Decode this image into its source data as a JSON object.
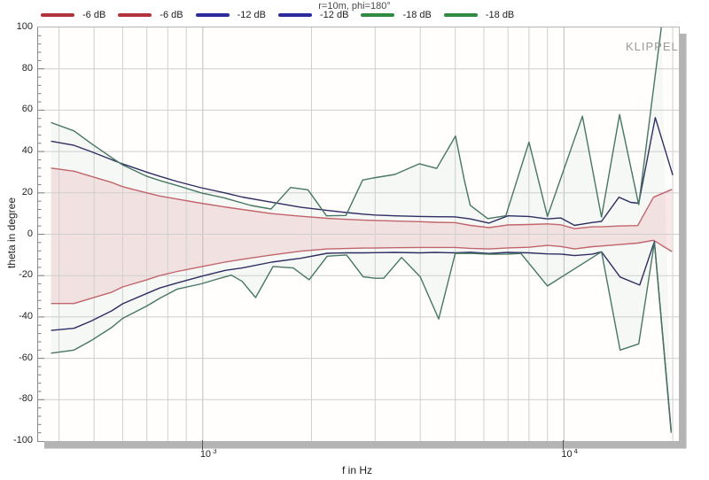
{
  "title": "r=10m, phi=180°",
  "watermark": "KLIPPEL",
  "legend": [
    {
      "label": "-6 dB",
      "color": "#b2333b"
    },
    {
      "label": "-6 dB",
      "color": "#b2333b"
    },
    {
      "label": "-12 dB",
      "color": "#2b2b9e"
    },
    {
      "label": "-12 dB",
      "color": "#2b2b9e"
    },
    {
      "label": "-18 dB",
      "color": "#2f8b40"
    },
    {
      "label": "-18 dB",
      "color": "#2f8b40"
    }
  ],
  "chart_data": {
    "type": "line",
    "title": "r=10m, phi=180°",
    "xlabel": "f in Hz",
    "ylabel": "theta in degree",
    "xscale": "log",
    "xlim": [
      350,
      20800
    ],
    "ylim": [
      -100,
      100
    ],
    "grid": true,
    "yticks": [
      100,
      80,
      60,
      40,
      20,
      0,
      -20,
      -40,
      -60,
      -80,
      -100
    ],
    "xticks": [
      {
        "label_base": "10",
        "label_exp": "3",
        "value": 1000
      },
      {
        "label_base": "10",
        "label_exp": "4",
        "value": 10000
      }
    ],
    "grid_freqs": [
      400,
      500,
      600,
      700,
      800,
      900,
      1000,
      2000,
      3000,
      4000,
      5000,
      6000,
      7000,
      8000,
      9000,
      10000,
      20000
    ],
    "colors": {
      "red_curve": "#c2646c",
      "blue_curve": "#2e2e63",
      "green_curve": "#477762",
      "grid": "#cfcfcf",
      "grid_major": "#bdbdbd",
      "band_red_fill": "rgba(225,130,140,0.18)",
      "band_green_fill": "rgba(110,170,130,0.07)"
    },
    "series": [
      {
        "name": "-6 dB upper",
        "color": "#c2646c",
        "points": [
          [
            380,
            32
          ],
          [
            440,
            30.5
          ],
          [
            490,
            28
          ],
          [
            560,
            25
          ],
          [
            600,
            23
          ],
          [
            700,
            20
          ],
          [
            760,
            18.5
          ],
          [
            850,
            17
          ],
          [
            990,
            15
          ],
          [
            1150,
            13.2
          ],
          [
            1285,
            12
          ],
          [
            1550,
            10
          ],
          [
            1870,
            8.7
          ],
          [
            2210,
            7.7
          ],
          [
            2500,
            7.2
          ],
          [
            2800,
            6.8
          ],
          [
            3000,
            6.7
          ],
          [
            3400,
            6.4
          ],
          [
            4000,
            6.1
          ],
          [
            4400,
            5.8
          ],
          [
            5000,
            5.6
          ],
          [
            5500,
            4.3
          ],
          [
            6200,
            3.2
          ],
          [
            7000,
            4.5
          ],
          [
            8000,
            4.7
          ],
          [
            9000,
            5
          ],
          [
            9800,
            4.6
          ],
          [
            10700,
            2.7
          ],
          [
            12000,
            3.6
          ],
          [
            12700,
            3.6
          ],
          [
            14200,
            4
          ],
          [
            16000,
            4.2
          ],
          [
            17700,
            17.9
          ],
          [
            19900,
            21.7
          ]
        ]
      },
      {
        "name": "-6 dB lower",
        "color": "#c2646c",
        "points": [
          [
            380,
            -33.5
          ],
          [
            440,
            -33.5
          ],
          [
            490,
            -31
          ],
          [
            560,
            -28
          ],
          [
            600,
            -25.5
          ],
          [
            700,
            -22
          ],
          [
            760,
            -20
          ],
          [
            850,
            -18
          ],
          [
            990,
            -15.7
          ],
          [
            1150,
            -13.5
          ],
          [
            1285,
            -12.1
          ],
          [
            1550,
            -10
          ],
          [
            1870,
            -8.2
          ],
          [
            2210,
            -7.1
          ],
          [
            2500,
            -6.9
          ],
          [
            2800,
            -6.7
          ],
          [
            3000,
            -6.7
          ],
          [
            3400,
            -6.5
          ],
          [
            4000,
            -6.4
          ],
          [
            4400,
            -6.4
          ],
          [
            5000,
            -6.4
          ],
          [
            5500,
            -6.8
          ],
          [
            6200,
            -7.1
          ],
          [
            7000,
            -6.6
          ],
          [
            8000,
            -6.3
          ],
          [
            9000,
            -5.4
          ],
          [
            9800,
            -5.9
          ],
          [
            10700,
            -7.1
          ],
          [
            12000,
            -6
          ],
          [
            12700,
            -5.7
          ],
          [
            14200,
            -5
          ],
          [
            16000,
            -4.3
          ],
          [
            17700,
            -2.9
          ],
          [
            19900,
            -8.4
          ]
        ]
      },
      {
        "name": "-12 dB upper",
        "color": "#2e2e63",
        "points": [
          [
            380,
            45
          ],
          [
            440,
            43
          ],
          [
            490,
            40
          ],
          [
            560,
            36
          ],
          [
            600,
            34
          ],
          [
            700,
            30
          ],
          [
            760,
            28
          ],
          [
            850,
            25.5
          ],
          [
            990,
            22.5
          ],
          [
            1150,
            20
          ],
          [
            1285,
            18
          ],
          [
            1550,
            15.5
          ],
          [
            1870,
            13
          ],
          [
            2210,
            11.5
          ],
          [
            2500,
            10.5
          ],
          [
            2800,
            9.7
          ],
          [
            3000,
            9.3
          ],
          [
            3400,
            8.9
          ],
          [
            4000,
            8.6
          ],
          [
            4400,
            8.5
          ],
          [
            5000,
            8.4
          ],
          [
            5500,
            7.4
          ],
          [
            6200,
            5.4
          ],
          [
            7000,
            8.9
          ],
          [
            8000,
            8.6
          ],
          [
            9000,
            7.4
          ],
          [
            9800,
            7.9
          ],
          [
            10700,
            4.3
          ],
          [
            12000,
            5.7
          ],
          [
            12700,
            6.2
          ],
          [
            14200,
            17.9
          ],
          [
            15300,
            15.4
          ],
          [
            16100,
            15
          ],
          [
            17900,
            56.4
          ],
          [
            20000,
            28.6
          ]
        ]
      },
      {
        "name": "-12 dB lower",
        "color": "#2e2e63",
        "points": [
          [
            380,
            -46.5
          ],
          [
            440,
            -45.5
          ],
          [
            490,
            -42
          ],
          [
            560,
            -37
          ],
          [
            600,
            -33.6
          ],
          [
            700,
            -28.6
          ],
          [
            760,
            -26
          ],
          [
            850,
            -23.5
          ],
          [
            990,
            -20.4
          ],
          [
            1150,
            -17.5
          ],
          [
            1285,
            -16.3
          ],
          [
            1550,
            -13.5
          ],
          [
            1870,
            -11.6
          ],
          [
            2210,
            -9.2
          ],
          [
            2500,
            -9
          ],
          [
            2800,
            -9
          ],
          [
            3000,
            -8.9
          ],
          [
            3400,
            -8.8
          ],
          [
            4000,
            -9
          ],
          [
            4400,
            -8.8
          ],
          [
            5000,
            -9
          ],
          [
            5500,
            -8.7
          ],
          [
            6200,
            -9.3
          ],
          [
            7000,
            -8.8
          ],
          [
            8000,
            -9
          ],
          [
            9000,
            -9.5
          ],
          [
            9800,
            -9.6
          ],
          [
            10700,
            -10.3
          ],
          [
            12000,
            -9.6
          ],
          [
            12700,
            -8.5
          ],
          [
            14300,
            -20.7
          ],
          [
            16200,
            -24.6
          ],
          [
            17800,
            -3.5
          ],
          [
            19800,
            -95
          ]
        ]
      },
      {
        "name": "-18 dB upper",
        "color": "#477762",
        "points": [
          [
            380,
            54
          ],
          [
            440,
            50
          ],
          [
            490,
            44
          ],
          [
            560,
            37
          ],
          [
            600,
            33.5
          ],
          [
            700,
            28
          ],
          [
            760,
            26
          ],
          [
            850,
            23.5
          ],
          [
            990,
            20
          ],
          [
            1150,
            17.5
          ],
          [
            1360,
            13.9
          ],
          [
            1545,
            12.2
          ],
          [
            1750,
            22.6
          ],
          [
            1955,
            21.5
          ],
          [
            2200,
            8.9
          ],
          [
            2490,
            9.1
          ],
          [
            2770,
            26.2
          ],
          [
            2960,
            27.2
          ],
          [
            3400,
            28.9
          ],
          [
            3980,
            34.1
          ],
          [
            4440,
            31.8
          ],
          [
            5010,
            47.5
          ],
          [
            5300,
            26
          ],
          [
            5500,
            14
          ],
          [
            6150,
            7.6
          ],
          [
            6900,
            8.9
          ],
          [
            8000,
            44.6
          ],
          [
            9000,
            8.6
          ],
          [
            11250,
            57.1
          ],
          [
            12700,
            8.3
          ],
          [
            14250,
            57.9
          ],
          [
            16100,
            14.3
          ],
          [
            18600,
            100
          ]
        ]
      },
      {
        "name": "-18 dB lower",
        "color": "#477762",
        "points": [
          [
            380,
            -57.5
          ],
          [
            440,
            -56
          ],
          [
            490,
            -51.5
          ],
          [
            560,
            -45
          ],
          [
            600,
            -40.7
          ],
          [
            700,
            -34.7
          ],
          [
            760,
            -31
          ],
          [
            850,
            -26.5
          ],
          [
            990,
            -24
          ],
          [
            1110,
            -21.4
          ],
          [
            1200,
            -19.8
          ],
          [
            1285,
            -22.8
          ],
          [
            1400,
            -30.6
          ],
          [
            1565,
            -15.6
          ],
          [
            1780,
            -16.3
          ],
          [
            1970,
            -22
          ],
          [
            2210,
            -10.6
          ],
          [
            2500,
            -10
          ],
          [
            2780,
            -20.6
          ],
          [
            3000,
            -21.3
          ],
          [
            3170,
            -21.3
          ],
          [
            3550,
            -11.2
          ],
          [
            4000,
            -20.6
          ],
          [
            4500,
            -41
          ],
          [
            5000,
            -9.3
          ],
          [
            5500,
            -9.2
          ],
          [
            6200,
            -9.7
          ],
          [
            7000,
            -9.6
          ],
          [
            7600,
            -9.3
          ],
          [
            9000,
            -25
          ],
          [
            12700,
            -8.5
          ],
          [
            14300,
            -56
          ],
          [
            16100,
            -53
          ],
          [
            17800,
            -4
          ],
          [
            19800,
            -96
          ]
        ]
      }
    ]
  }
}
